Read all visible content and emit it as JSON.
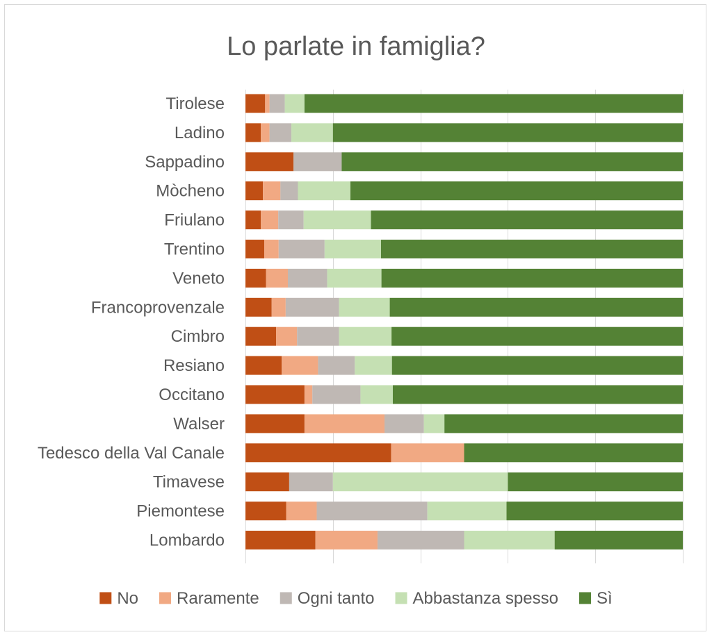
{
  "chart_data": {
    "type": "bar",
    "orientation": "horizontal",
    "stacked": "percent",
    "title": "Lo parlate in famiglia?",
    "xlabel": "",
    "ylabel": "",
    "xlim": [
      0,
      100
    ],
    "grid": true,
    "legend_position": "bottom",
    "categories": [
      "Tirolese",
      "Ladino",
      "Sappadino",
      "Mòcheno",
      "Friulano",
      "Trentino",
      "Veneto",
      "Francoprovenzale",
      "Cimbro",
      "Resiano",
      "Occitano",
      "Walser",
      "Tedesco della Val Canale",
      "Timavese",
      "Piemontese",
      "Lombardo"
    ],
    "series": [
      {
        "name": "No",
        "color": "#C04F15",
        "values": [
          4.5,
          3.5,
          11,
          4,
          3.5,
          4.3,
          4.7,
          6,
          7,
          8.3,
          13.5,
          13.5,
          33.3,
          10,
          9.3,
          16
        ]
      },
      {
        "name": "Raramente",
        "color": "#F1A983",
        "values": [
          1,
          2,
          0,
          4,
          4,
          3.3,
          5,
          3.2,
          4.8,
          8.3,
          1.8,
          18.3,
          16.7,
          0,
          7,
          14.2
        ]
      },
      {
        "name": "Ogni tanto",
        "color": "#BFB8B4",
        "values": [
          3.5,
          5,
          11,
          4,
          5.8,
          10.5,
          9,
          12.2,
          9.6,
          8.4,
          11,
          9,
          0,
          10,
          25.3,
          19.8
        ]
      },
      {
        "name": "Abbastanza spesso",
        "color": "#C5E0B3",
        "values": [
          4.5,
          9.5,
          0,
          12,
          15.4,
          12.9,
          12.4,
          11.6,
          12,
          8.5,
          7.4,
          4.7,
          0,
          40,
          18.1,
          20.7
        ]
      },
      {
        "name": "Sì",
        "color": "#548235",
        "values": [
          86.5,
          80,
          78,
          76,
          71.3,
          69,
          68.9,
          67,
          66.6,
          66.5,
          66.3,
          54.5,
          50,
          40,
          40.3,
          29.3
        ]
      }
    ]
  }
}
